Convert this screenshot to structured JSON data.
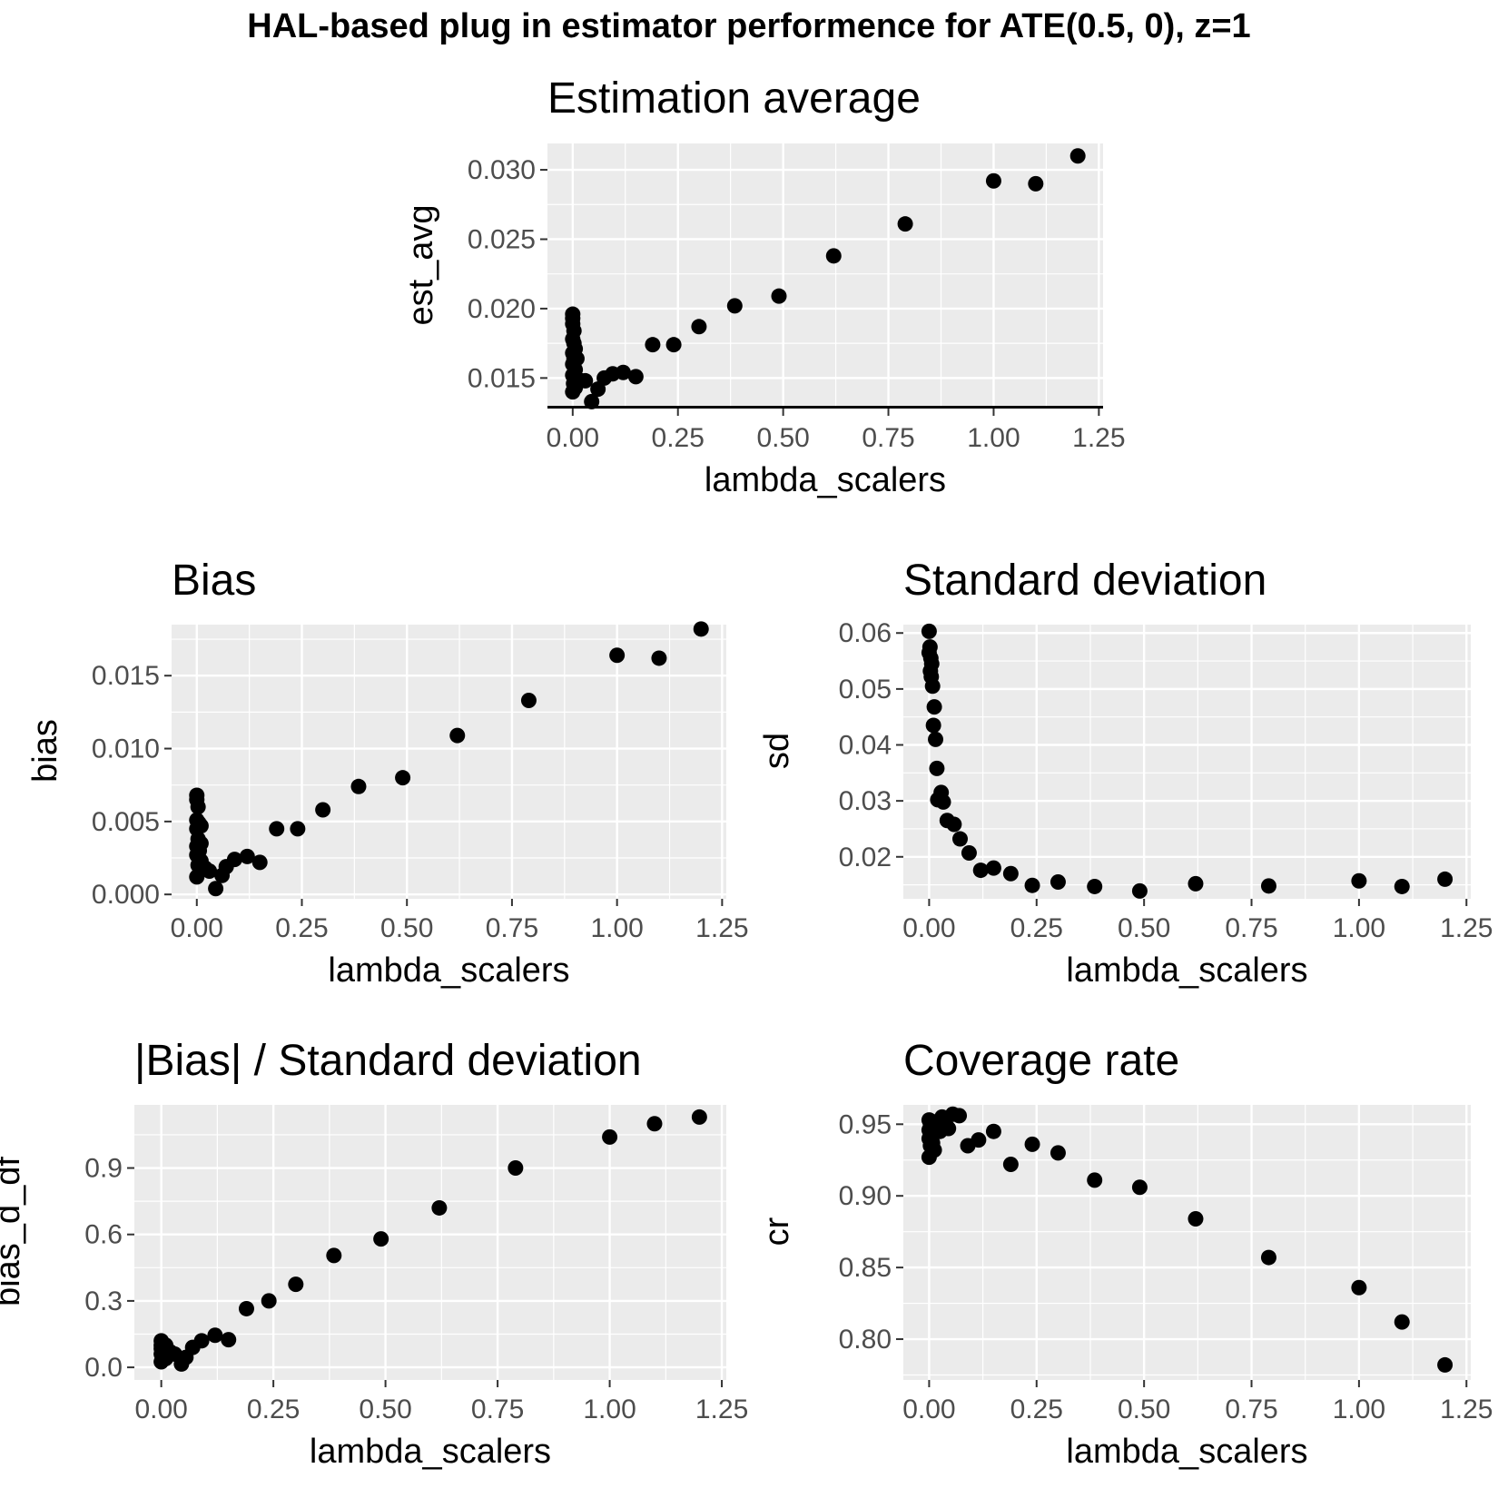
{
  "title": "HAL-based plug in estimator performence for ATE(0.5, 0), z=1",
  "chart_data": [
    {
      "type": "scatter",
      "title": "Estimation average",
      "xlabel": "lambda_scalers",
      "ylabel": "est_avg",
      "xlim": [
        -0.06,
        1.26
      ],
      "ylim": [
        0.0128,
        0.0319
      ],
      "xticks": [
        0.0,
        0.25,
        0.5,
        0.75,
        1.0,
        1.25
      ],
      "xtick_labels": [
        "0.00",
        "0.25",
        "0.50",
        "0.75",
        "1.00",
        "1.25"
      ],
      "yticks": [
        0.015,
        0.02,
        0.025,
        0.03
      ],
      "ytick_labels": [
        "0.015",
        "0.020",
        "0.025",
        "0.030"
      ],
      "hline": 0.0129,
      "points": [
        [
          0.0,
          0.0196
        ],
        [
          0.0,
          0.0193
        ],
        [
          0.0,
          0.0189
        ],
        [
          0.003,
          0.0184
        ],
        [
          0.0,
          0.0178
        ],
        [
          0.003,
          0.0175
        ],
        [
          0.006,
          0.0171
        ],
        [
          0.0,
          0.0168
        ],
        [
          0.003,
          0.0164
        ],
        [
          0.01,
          0.0164
        ],
        [
          0.0,
          0.016
        ],
        [
          0.006,
          0.0156
        ],
        [
          0.0,
          0.0152
        ],
        [
          0.01,
          0.0149
        ],
        [
          0.002,
          0.0146
        ],
        [
          0.006,
          0.0143
        ],
        [
          0.0,
          0.014
        ],
        [
          0.02,
          0.0148
        ],
        [
          0.03,
          0.0148
        ],
        [
          0.045,
          0.0133
        ],
        [
          0.06,
          0.0142
        ],
        [
          0.075,
          0.015
        ],
        [
          0.095,
          0.0153
        ],
        [
          0.12,
          0.0154
        ],
        [
          0.15,
          0.0151
        ],
        [
          0.19,
          0.0174
        ],
        [
          0.24,
          0.0174
        ],
        [
          0.3,
          0.0187
        ],
        [
          0.385,
          0.0202
        ],
        [
          0.49,
          0.0209
        ],
        [
          0.62,
          0.0238
        ],
        [
          0.79,
          0.0261
        ],
        [
          1.0,
          0.0292
        ],
        [
          1.1,
          0.029
        ],
        [
          1.2,
          0.031
        ]
      ]
    },
    {
      "type": "scatter",
      "title": "Bias",
      "xlabel": "lambda_scalers",
      "ylabel": "bias",
      "xlim": [
        -0.06,
        1.26
      ],
      "ylim": [
        -0.0003,
        0.0185
      ],
      "xticks": [
        0.0,
        0.25,
        0.5,
        0.75,
        1.0,
        1.25
      ],
      "xtick_labels": [
        "0.00",
        "0.25",
        "0.50",
        "0.75",
        "1.00",
        "1.25"
      ],
      "yticks": [
        0.0,
        0.005,
        0.01,
        0.015
      ],
      "ytick_labels": [
        "0.000",
        "0.005",
        "0.010",
        "0.015"
      ],
      "points": [
        [
          0.0,
          0.0068
        ],
        [
          0.0,
          0.0065
        ],
        [
          0.003,
          0.006
        ],
        [
          0.0,
          0.0051
        ],
        [
          0.005,
          0.0049
        ],
        [
          0.01,
          0.0047
        ],
        [
          0.0,
          0.0045
        ],
        [
          0.003,
          0.0038
        ],
        [
          0.01,
          0.0035
        ],
        [
          0.0,
          0.0033
        ],
        [
          0.006,
          0.003
        ],
        [
          0.0,
          0.0027
        ],
        [
          0.01,
          0.0023
        ],
        [
          0.003,
          0.002
        ],
        [
          0.0,
          0.0012
        ],
        [
          0.02,
          0.0018
        ],
        [
          0.03,
          0.0016
        ],
        [
          0.045,
          0.0004
        ],
        [
          0.06,
          0.0013
        ],
        [
          0.07,
          0.0019
        ],
        [
          0.09,
          0.0024
        ],
        [
          0.12,
          0.0026
        ],
        [
          0.15,
          0.0022
        ],
        [
          0.19,
          0.0045
        ],
        [
          0.24,
          0.0045
        ],
        [
          0.3,
          0.0058
        ],
        [
          0.385,
          0.0074
        ],
        [
          0.49,
          0.008
        ],
        [
          0.62,
          0.0109
        ],
        [
          0.79,
          0.0133
        ],
        [
          1.0,
          0.0164
        ],
        [
          1.1,
          0.0162
        ],
        [
          1.2,
          0.0182
        ]
      ]
    },
    {
      "type": "scatter",
      "title": "Standard deviation",
      "xlabel": "lambda_scalers",
      "ylabel": "sd",
      "xlim": [
        -0.06,
        1.26
      ],
      "ylim": [
        0.0125,
        0.0615
      ],
      "xticks": [
        0.0,
        0.25,
        0.5,
        0.75,
        1.0,
        1.25
      ],
      "xtick_labels": [
        "0.00",
        "0.25",
        "0.50",
        "0.75",
        "1.00",
        "1.25"
      ],
      "yticks": [
        0.02,
        0.03,
        0.04,
        0.05,
        0.06
      ],
      "ytick_labels": [
        "0.02",
        "0.03",
        "0.04",
        "0.05",
        "0.06"
      ],
      "points": [
        [
          0.0,
          0.0603
        ],
        [
          0.002,
          0.0575
        ],
        [
          0.0,
          0.0565
        ],
        [
          0.004,
          0.0555
        ],
        [
          0.006,
          0.0545
        ],
        [
          0.003,
          0.0532
        ],
        [
          0.005,
          0.0522
        ],
        [
          0.008,
          0.0505
        ],
        [
          0.012,
          0.0468
        ],
        [
          0.01,
          0.0435
        ],
        [
          0.015,
          0.041
        ],
        [
          0.018,
          0.0358
        ],
        [
          0.02,
          0.0302
        ],
        [
          0.028,
          0.0315
        ],
        [
          0.033,
          0.0298
        ],
        [
          0.042,
          0.0265
        ],
        [
          0.058,
          0.0258
        ],
        [
          0.072,
          0.0232
        ],
        [
          0.093,
          0.0207
        ],
        [
          0.12,
          0.0176
        ],
        [
          0.15,
          0.018
        ],
        [
          0.19,
          0.017
        ],
        [
          0.24,
          0.0149
        ],
        [
          0.3,
          0.0155
        ],
        [
          0.385,
          0.0147
        ],
        [
          0.49,
          0.0139
        ],
        [
          0.62,
          0.0152
        ],
        [
          0.79,
          0.0148
        ],
        [
          1.0,
          0.0157
        ],
        [
          1.1,
          0.0147
        ],
        [
          1.2,
          0.016
        ]
      ]
    },
    {
      "type": "scatter",
      "title": "|Bias| / Standard deviation",
      "xlabel": "lambda_scalers",
      "ylabel": "bias_d_df",
      "xlim": [
        -0.06,
        1.26
      ],
      "ylim": [
        -0.057,
        1.185
      ],
      "xticks": [
        0.0,
        0.25,
        0.5,
        0.75,
        1.0,
        1.25
      ],
      "xtick_labels": [
        "0.00",
        "0.25",
        "0.50",
        "0.75",
        "1.00",
        "1.25"
      ],
      "yticks": [
        0.0,
        0.3,
        0.6,
        0.9
      ],
      "ytick_labels": [
        "0.0",
        "0.3",
        "0.6",
        "0.9"
      ],
      "points": [
        [
          0.0,
          0.12
        ],
        [
          0.003,
          0.11
        ],
        [
          0.0,
          0.1
        ],
        [
          0.005,
          0.095
        ],
        [
          0.0,
          0.085
        ],
        [
          0.01,
          0.1
        ],
        [
          0.003,
          0.07
        ],
        [
          0.0,
          0.06
        ],
        [
          0.006,
          0.055
        ],
        [
          0.01,
          0.04
        ],
        [
          0.0,
          0.025
        ],
        [
          0.02,
          0.07
        ],
        [
          0.03,
          0.06
        ],
        [
          0.045,
          0.015
        ],
        [
          0.055,
          0.045
        ],
        [
          0.07,
          0.09
        ],
        [
          0.09,
          0.12
        ],
        [
          0.12,
          0.145
        ],
        [
          0.15,
          0.125
        ],
        [
          0.19,
          0.265
        ],
        [
          0.24,
          0.3
        ],
        [
          0.3,
          0.375
        ],
        [
          0.385,
          0.505
        ],
        [
          0.49,
          0.58
        ],
        [
          0.62,
          0.72
        ],
        [
          0.79,
          0.9
        ],
        [
          1.0,
          1.04
        ],
        [
          1.1,
          1.1
        ],
        [
          1.2,
          1.13
        ]
      ]
    },
    {
      "type": "scatter",
      "title": "Coverage rate",
      "xlabel": "lambda_scalers",
      "ylabel": "cr",
      "xlim": [
        -0.06,
        1.26
      ],
      "ylim": [
        0.7715,
        0.9635
      ],
      "xticks": [
        0.0,
        0.25,
        0.5,
        0.75,
        1.0,
        1.25
      ],
      "xtick_labels": [
        "0.00",
        "0.25",
        "0.50",
        "0.75",
        "1.00",
        "1.25"
      ],
      "yticks": [
        0.8,
        0.85,
        0.9,
        0.95
      ],
      "ytick_labels": [
        "0.80",
        "0.85",
        "0.90",
        "0.95"
      ],
      "points": [
        [
          0.0,
          0.953
        ],
        [
          0.003,
          0.95
        ],
        [
          0.0,
          0.946
        ],
        [
          0.005,
          0.943
        ],
        [
          0.0,
          0.94
        ],
        [
          0.008,
          0.937
        ],
        [
          0.003,
          0.935
        ],
        [
          0.0,
          0.927
        ],
        [
          0.012,
          0.932
        ],
        [
          0.015,
          0.948
        ],
        [
          0.02,
          0.952
        ],
        [
          0.025,
          0.945
        ],
        [
          0.03,
          0.955
        ],
        [
          0.038,
          0.95
        ],
        [
          0.045,
          0.947
        ],
        [
          0.055,
          0.957
        ],
        [
          0.07,
          0.956
        ],
        [
          0.09,
          0.935
        ],
        [
          0.115,
          0.939
        ],
        [
          0.15,
          0.945
        ],
        [
          0.19,
          0.922
        ],
        [
          0.24,
          0.936
        ],
        [
          0.3,
          0.93
        ],
        [
          0.385,
          0.911
        ],
        [
          0.49,
          0.906
        ],
        [
          0.62,
          0.884
        ],
        [
          0.79,
          0.857
        ],
        [
          1.0,
          0.836
        ],
        [
          1.1,
          0.812
        ],
        [
          1.2,
          0.782
        ]
      ]
    }
  ]
}
